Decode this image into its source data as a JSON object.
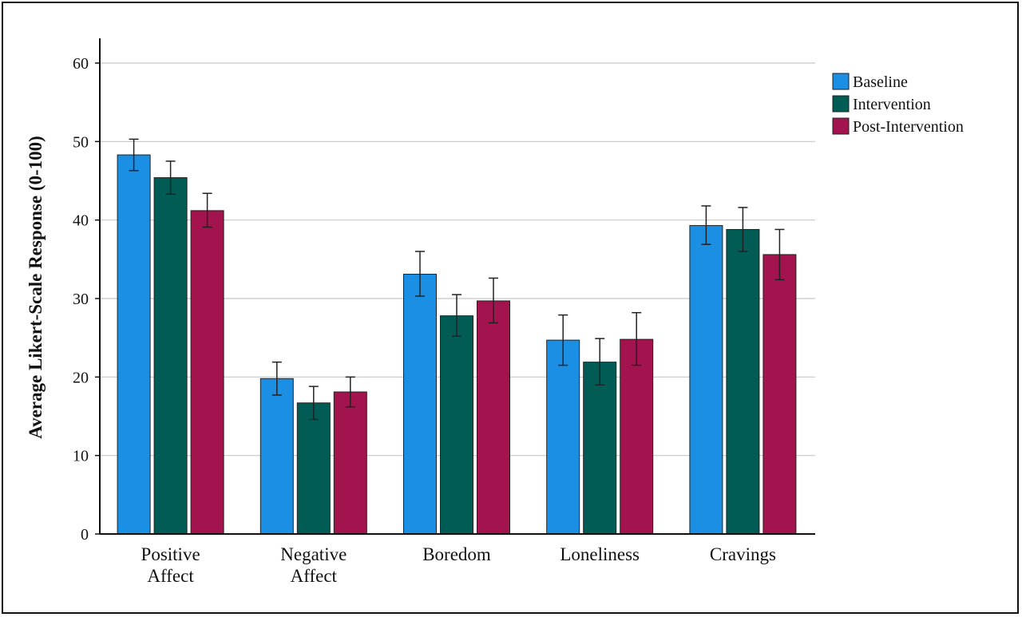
{
  "chart_data": {
    "type": "bar",
    "title": "",
    "xlabel": "",
    "ylabel": "Average Likert-Scale Response (0-100)",
    "ylim": [
      0,
      60
    ],
    "yticks": [
      0,
      10,
      20,
      30,
      40,
      50,
      60
    ],
    "grid": true,
    "legend_position": "top-right",
    "categories": [
      [
        "Positive",
        "Affect"
      ],
      [
        "Negative",
        "Affect"
      ],
      [
        "Boredom"
      ],
      [
        "Loneliness"
      ],
      [
        "Cravings"
      ]
    ],
    "series": [
      {
        "name": "Baseline",
        "color": "#1a8fe3",
        "values": [
          48.3,
          19.8,
          33.1,
          24.7,
          39.3
        ],
        "error_low": [
          46.3,
          17.7,
          30.3,
          21.5,
          36.9
        ],
        "error_high": [
          50.3,
          21.9,
          36.0,
          27.9,
          41.8
        ]
      },
      {
        "name": "Intervention",
        "color": "#005c55",
        "values": [
          45.4,
          16.7,
          27.8,
          21.9,
          38.8
        ],
        "error_low": [
          43.3,
          14.6,
          25.2,
          19.0,
          36.0
        ],
        "error_high": [
          47.5,
          18.8,
          30.5,
          24.9,
          41.6
        ]
      },
      {
        "name": "Post-Intervention",
        "color": "#a3134e",
        "values": [
          41.2,
          18.1,
          29.7,
          24.8,
          35.6
        ],
        "error_low": [
          39.1,
          16.2,
          26.9,
          21.5,
          32.4
        ],
        "error_high": [
          43.4,
          20.0,
          32.6,
          28.2,
          38.8
        ]
      }
    ]
  }
}
